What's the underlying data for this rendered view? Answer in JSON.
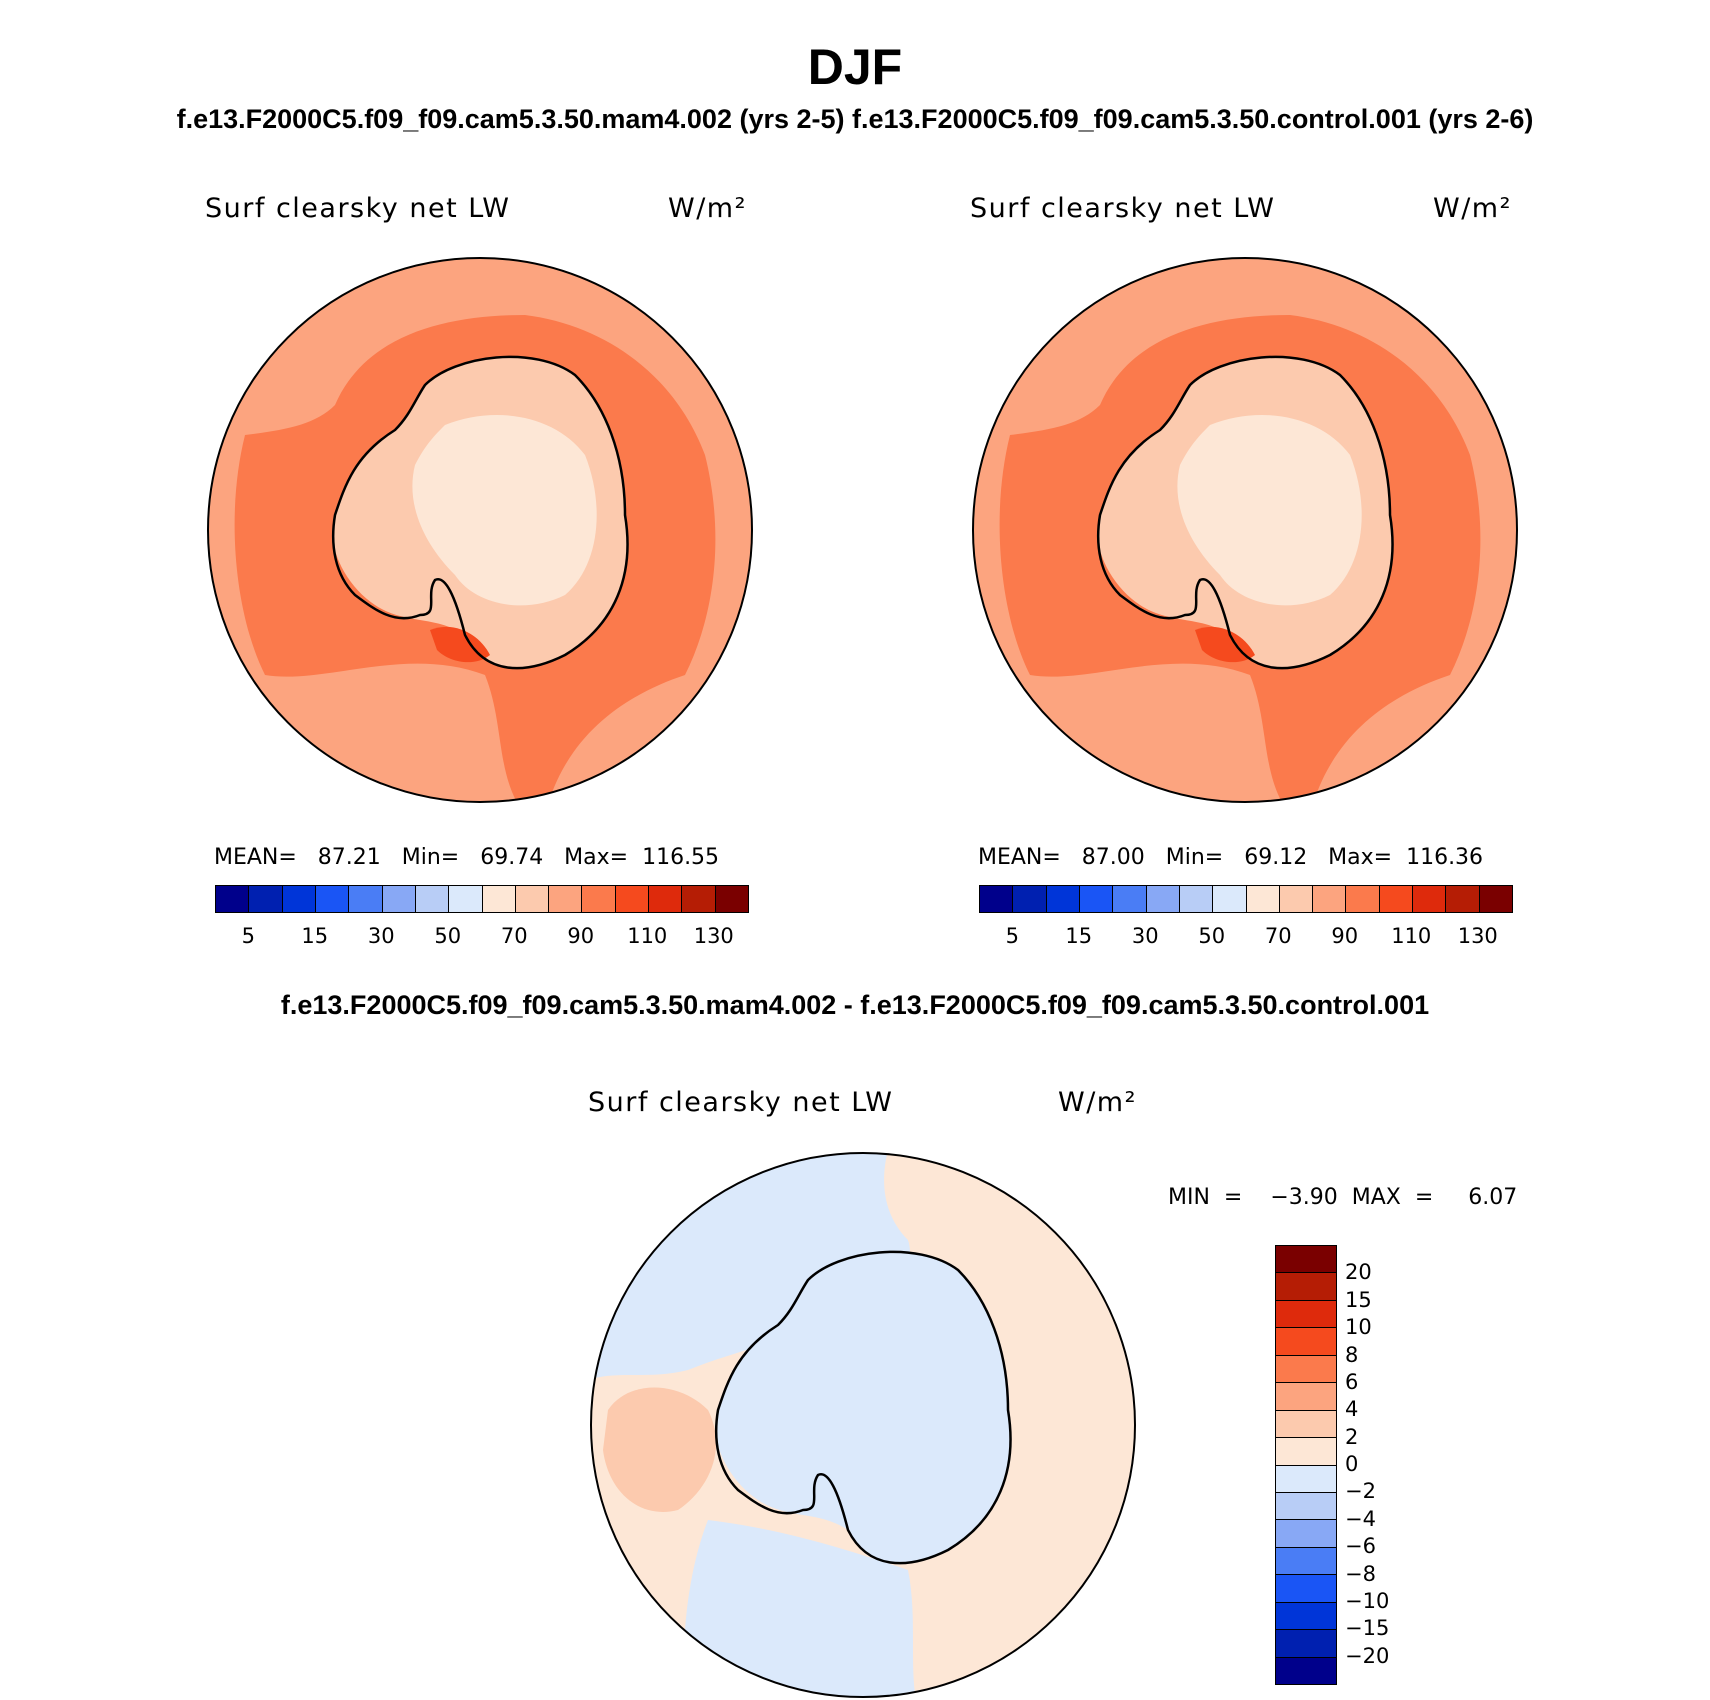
{
  "title": "DJF",
  "case_labels": "f.e13.F2000C5.f09_f09.cam5.3.50.mam4.002 (yrs 2-5) f.e13.F2000C5.f09_f09.cam5.3.50.control.001 (yrs 2-6)",
  "diff_title": "f.e13.F2000C5.f09_f09.cam5.3.50.mam4.002 - f.e13.F2000C5.f09_f09.cam5.3.50.control.001",
  "variable": "Surf clearsky net LW",
  "units": "W/m²",
  "panel_left": {
    "stats": "MEAN=   87.21   Min=   69.74   Max=  116.55"
  },
  "panel_right": {
    "stats": "MEAN=   87.00   Min=   69.12   Max=  116.36"
  },
  "panel_diff": {
    "stats": "MIN  =    −3.90  MAX  =     6.07"
  },
  "abs_colorbar": {
    "colors": [
      "#00008b",
      "#0020b0",
      "#0035d8",
      "#1a55f5",
      "#4a7df5",
      "#88a8f5",
      "#b8cdf6",
      "#dbe9fb",
      "#fde7d6",
      "#fccaae",
      "#fca47f",
      "#fb7a4c",
      "#f54a1e",
      "#de2a0c",
      "#b51d05",
      "#7a0000"
    ],
    "tick_labels": [
      "5",
      "15",
      "30",
      "50",
      "70",
      "90",
      "110",
      "130"
    ]
  },
  "diff_colorbar": {
    "colors_top_to_bottom": [
      "#7a0000",
      "#b51d05",
      "#de2a0c",
      "#f54a1e",
      "#fb7a4c",
      "#fca47f",
      "#fccaae",
      "#fde7d6",
      "#dbe9fb",
      "#b8cdf6",
      "#88a8f5",
      "#4a7df5",
      "#1a55f5",
      "#0035d8",
      "#0020b0",
      "#00008b"
    ],
    "tick_labels": [
      "20",
      "15",
      "10",
      "8",
      "6",
      "4",
      "2",
      "0",
      "−2",
      "−4",
      "−6",
      "−8",
      "−10",
      "−15",
      "−20"
    ]
  },
  "colors": {
    "ocean_band": "#fb7a4c",
    "outer_ocean": "#fca47f",
    "continent": "#fccaae",
    "continent_interior": "#fde7d6",
    "max_region": "#f54a1e",
    "diff_positive": "#fde7d6",
    "diff_negative": "#dbe9fb",
    "diff_patch": "#fccaae"
  }
}
